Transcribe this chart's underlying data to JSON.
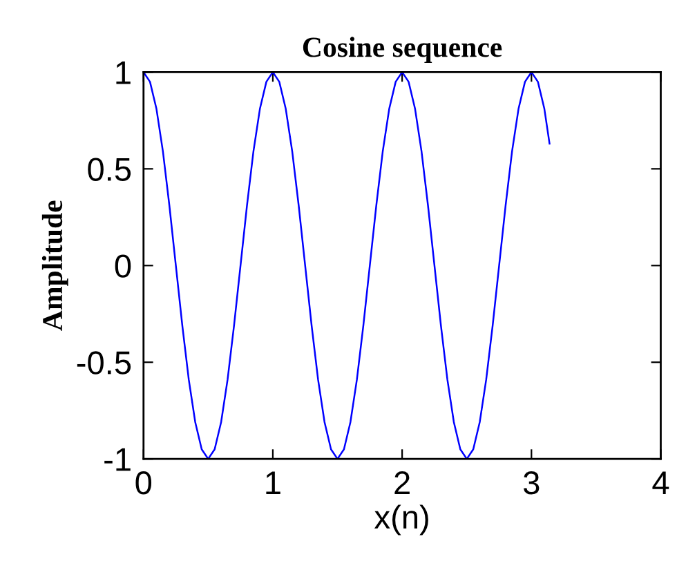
{
  "chart_data": {
    "type": "line",
    "title": "Cosine sequence",
    "xlabel": "x(n)",
    "ylabel": "Amplitude",
    "x": [
      0,
      0.05,
      0.1,
      0.15,
      0.2,
      0.25,
      0.3,
      0.35,
      0.4,
      0.45,
      0.5,
      0.55,
      0.6,
      0.65,
      0.7,
      0.75,
      0.8,
      0.85,
      0.9,
      0.95,
      1,
      1.05,
      1.1,
      1.15,
      1.2,
      1.25,
      1.3,
      1.35,
      1.4,
      1.45,
      1.5,
      1.55,
      1.6,
      1.65,
      1.7,
      1.75,
      1.8,
      1.85,
      1.9,
      1.95,
      2,
      2.05,
      2.1,
      2.15,
      2.2,
      2.25,
      2.3,
      2.35,
      2.4,
      2.45,
      2.5,
      2.55,
      2.6,
      2.65,
      2.7,
      2.75,
      2.8,
      2.85,
      2.9,
      2.95,
      3,
      3.05,
      3.1,
      3.14
    ],
    "values": [
      1,
      0.95,
      0.81,
      0.59,
      0.31,
      0,
      -0.31,
      -0.59,
      -0.81,
      -0.95,
      -1,
      -0.95,
      -0.81,
      -0.59,
      -0.31,
      0,
      0.31,
      0.59,
      0.81,
      0.95,
      1,
      0.95,
      0.81,
      0.59,
      0.31,
      0,
      -0.31,
      -0.59,
      -0.81,
      -0.95,
      -1,
      -0.95,
      -0.81,
      -0.59,
      -0.31,
      0,
      0.31,
      0.59,
      0.81,
      0.95,
      1,
      0.95,
      0.81,
      0.59,
      0.31,
      0,
      -0.31,
      -0.59,
      -0.81,
      -0.95,
      -1,
      -0.95,
      -0.81,
      -0.59,
      -0.31,
      0,
      0.31,
      0.59,
      0.81,
      0.95,
      1,
      0.95,
      0.81,
      0.63
    ],
    "color": "#0000ff",
    "line_style": "solid",
    "xlim": [
      0,
      4
    ],
    "ylim": [
      -1,
      1
    ],
    "xticks": [
      0,
      1,
      2,
      3,
      4
    ],
    "yticks": [
      -1,
      -0.5,
      0,
      0.5,
      1
    ]
  }
}
